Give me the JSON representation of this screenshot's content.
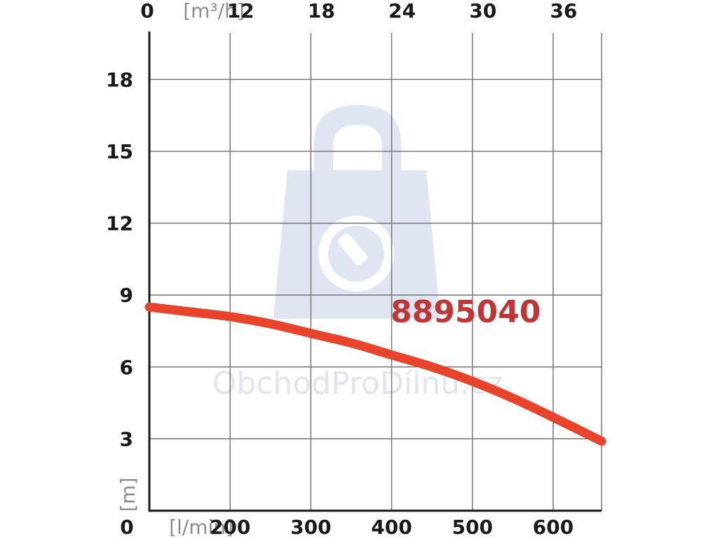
{
  "watermark": {
    "text": "ObchodProDílnu.cz",
    "color": "#dfe5f1"
  },
  "chart_data": {
    "type": "line",
    "model_label": "8895040",
    "curve_color": "#e8432b",
    "label_color": "#c03535",
    "x_bottom": {
      "unit": "[l/min]",
      "zero_label": "0",
      "ticks": [
        200,
        300,
        400,
        500,
        600
      ],
      "range": [
        100,
        660
      ]
    },
    "x_top": {
      "unit": "[m³/h]",
      "zero_label": "0",
      "ticks": [
        12,
        18,
        24,
        30,
        36
      ]
    },
    "y": {
      "unit": "[m]",
      "zero_label": "0",
      "ticks": [
        3,
        6,
        9,
        12,
        15,
        18
      ],
      "range": [
        0,
        20
      ]
    },
    "series": [
      {
        "x": [
          100,
          150,
          200,
          250,
          300,
          350,
          400,
          450,
          500,
          550,
          600,
          660
        ],
        "y": [
          8.5,
          8.3,
          8.1,
          7.8,
          7.4,
          7.0,
          6.5,
          6.0,
          5.4,
          4.7,
          3.9,
          2.9
        ]
      }
    ]
  }
}
